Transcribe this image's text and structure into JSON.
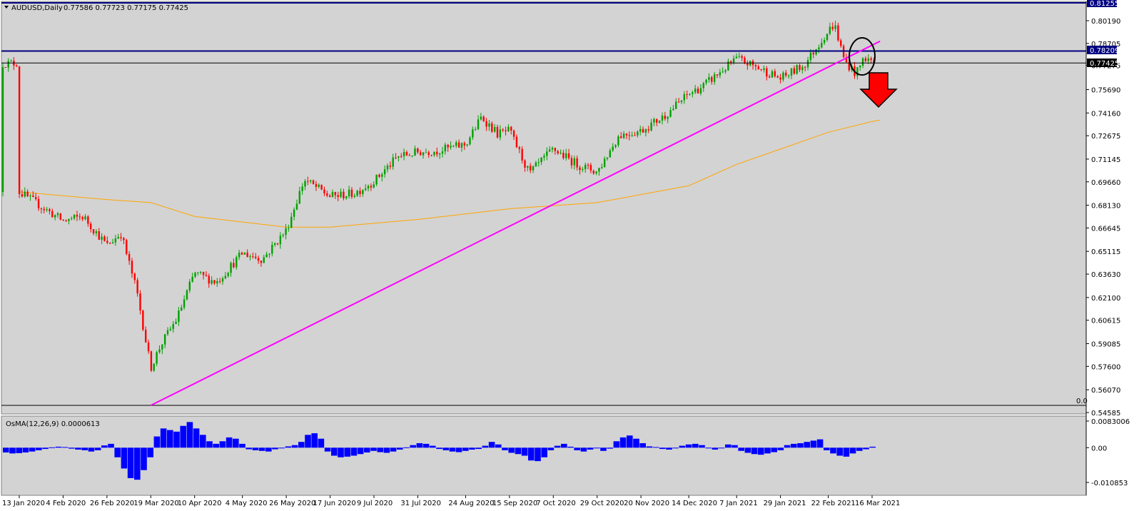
{
  "header": {
    "symbol_label": "AUDUSD,Daily",
    "ohlc_text": "0.77586 0.77723 0.77175 0.77425"
  },
  "colors": {
    "background": "#d3d3d3",
    "bull": "#00a000",
    "bear": "#ff0000",
    "trendline": "#ff00ff",
    "moving_average": "#ffa500",
    "resistance_line": "#000080",
    "osma_bars": "#0000ff",
    "arrow": "#ff0000"
  },
  "chart_data": [
    {
      "type": "candlestick",
      "symbol": "AUDUSD",
      "timeframe": "Daily",
      "price_axis_labels": [
        "0.80190",
        "0.78705",
        "0.77275",
        "0.75690",
        "0.74160",
        "0.72675",
        "0.71145",
        "0.69660",
        "0.68130",
        "0.66645",
        "0.65115",
        "0.63630",
        "0.62100",
        "0.60615",
        "0.59085",
        "0.57600",
        "0.56070",
        "0.54585"
      ],
      "ylim": [
        0.54585,
        0.81255
      ],
      "date_axis_labels": [
        "13 Jan 2020",
        "4 Feb 2020",
        "26 Feb 2020",
        "19 Mar 2020",
        "10 Apr 2020",
        "4 May 2020",
        "26 May 2020",
        "17 Jun 2020",
        "9 Jul 2020",
        "31 Jul 2020",
        "24 Aug 2020",
        "15 Sep 2020",
        "7 Oct 2020",
        "29 Oct 2020",
        "20 Nov 2020",
        "14 Dec 2020",
        "7 Jan 2021",
        "29 Jan 2021",
        "22 Feb 2021",
        "16 Mar 2021"
      ],
      "price_tags": {
        "top": "0.81255",
        "resistance": "0.78209",
        "current": "0.77425"
      },
      "resistance_level": 0.7821,
      "current_price": 0.77425,
      "fibo_label": "0.0",
      "price_path": [
        [
          "13 Jan 2020",
          0.69
        ],
        [
          "4 Feb 2020",
          0.671
        ],
        [
          "14 Feb 2020",
          0.674
        ],
        [
          "26 Feb 2020",
          0.655
        ],
        [
          "4 Mar 2020",
          0.663
        ],
        [
          "12 Mar 2020",
          0.625
        ],
        [
          "19 Mar 2020",
          0.575
        ],
        [
          "24 Mar 2020",
          0.59
        ],
        [
          "1 Apr 2020",
          0.607
        ],
        [
          "10 Apr 2020",
          0.637
        ],
        [
          "21 Apr 2020",
          0.631
        ],
        [
          "4 May 2020",
          0.65
        ],
        [
          "14 May 2020",
          0.646
        ],
        [
          "26 May 2020",
          0.665
        ],
        [
          "4 Jun 2020",
          0.698
        ],
        [
          "10 Jun 2020",
          0.693
        ],
        [
          "17 Jun 2020",
          0.687
        ],
        [
          "29 Jun 2020",
          0.689
        ],
        [
          "9 Jul 2020",
          0.697
        ],
        [
          "21 Jul 2020",
          0.713
        ],
        [
          "31 Jul 2020",
          0.716
        ],
        [
          "10 Aug 2020",
          0.717
        ],
        [
          "24 Aug 2020",
          0.721
        ],
        [
          "1 Sep 2020",
          0.739
        ],
        [
          "9 Sep 2020",
          0.728
        ],
        [
          "15 Sep 2020",
          0.73
        ],
        [
          "25 Sep 2020",
          0.702
        ],
        [
          "7 Oct 2020",
          0.718
        ],
        [
          "19 Oct 2020",
          0.708
        ],
        [
          "29 Oct 2020",
          0.703
        ],
        [
          "9 Nov 2020",
          0.727
        ],
        [
          "20 Nov 2020",
          0.73
        ],
        [
          "1 Dec 2020",
          0.739
        ],
        [
          "14 Dec 2020",
          0.754
        ],
        [
          "21 Dec 2020",
          0.759
        ],
        [
          "7 Jan 2021",
          0.777
        ],
        [
          "18 Jan 2021",
          0.771
        ],
        [
          "29 Jan 2021",
          0.764
        ],
        [
          "10 Feb 2021",
          0.773
        ],
        [
          "19 Feb 2021",
          0.79
        ],
        [
          "25 Feb 2021",
          0.8
        ],
        [
          "2 Mar 2021",
          0.776
        ],
        [
          "8 Mar 2021",
          0.767
        ],
        [
          "12 Mar 2021",
          0.778
        ],
        [
          "18 Mar 2021",
          0.774
        ]
      ],
      "moving_average": [
        [
          "13 Jan 2020",
          0.69
        ],
        [
          "26 Feb 2020",
          0.685
        ],
        [
          "19 Mar 2020",
          0.683
        ],
        [
          "10 Apr 2020",
          0.674
        ],
        [
          "26 May 2020",
          0.667
        ],
        [
          "17 Jun 2020",
          0.667
        ],
        [
          "31 Jul 2020",
          0.672
        ],
        [
          "15 Sep 2020",
          0.679
        ],
        [
          "29 Oct 2020",
          0.683
        ],
        [
          "14 Dec 2020",
          0.694
        ],
        [
          "7 Jan 2021",
          0.708
        ],
        [
          "29 Jan 2021",
          0.718
        ],
        [
          "22 Feb 2021",
          0.729
        ],
        [
          "16 Mar 2021",
          0.736
        ],
        [
          "20 Mar 2021",
          0.737
        ]
      ],
      "trendline": {
        "from": [
          "19 Mar 2020",
          0.5505
        ],
        "to": [
          "20 Mar 2021",
          0.7885
        ]
      },
      "annotation": "circle at trendline break with red down arrow"
    },
    {
      "type": "histogram",
      "indicator_label": "OsMA(12,26,9) 0.0000613",
      "axis_labels": [
        "0.0083006",
        "0.00",
        "-0.010853"
      ],
      "ylim": [
        -0.010853,
        0.0083006
      ],
      "values": [
        -0.0015,
        -0.0018,
        -0.0017,
        -0.0015,
        -0.0012,
        -0.0008,
        -0.0004,
        0.0001,
        0.0003,
        0.0002,
        -0.0003,
        -0.0006,
        -0.0008,
        -0.0012,
        -0.0008,
        0.0007,
        0.0012,
        -0.003,
        -0.0065,
        -0.0095,
        -0.01,
        -0.007,
        -0.003,
        0.0035,
        0.006,
        0.0055,
        0.005,
        0.0068,
        0.008,
        0.006,
        0.004,
        0.002,
        0.0012,
        0.002,
        0.0032,
        0.0028,
        0.0012,
        -0.0005,
        -0.0008,
        -0.001,
        -0.0012,
        -0.0005,
        -0.0001,
        0.0004,
        0.0008,
        0.0018,
        0.004,
        0.0045,
        0.0028,
        -0.0012,
        -0.0025,
        -0.003,
        -0.0028,
        -0.0025,
        -0.002,
        -0.0015,
        -0.001,
        -0.0014,
        -0.0016,
        -0.0012,
        -0.0006,
        0.0001,
        0.0008,
        0.0014,
        0.0012,
        0.0006,
        -0.0004,
        -0.0008,
        -0.0012,
        -0.0014,
        -0.001,
        -0.0006,
        -0.0004,
        0.0006,
        0.0018,
        0.001,
        -0.0008,
        -0.0016,
        -0.002,
        -0.0025,
        -0.004,
        -0.0042,
        -0.003,
        -0.0008,
        0.0006,
        0.0012,
        0.0003,
        -0.0008,
        -0.0012,
        -0.0006,
        -0.0002,
        -0.001,
        -0.0003,
        0.002,
        0.0032,
        0.0038,
        0.0028,
        0.0014,
        0.0004,
        0.0002,
        -0.0004,
        -0.0006,
        -0.0002,
        0.0006,
        0.001,
        0.0012,
        0.0008,
        -0.0002,
        -0.0006,
        -0.0002,
        0.001,
        0.0008,
        -0.001,
        -0.0016,
        -0.002,
        -0.0022,
        -0.0018,
        -0.0014,
        -0.0008,
        0.0008,
        0.0012,
        0.0014,
        0.0018,
        0.0022,
        0.0026,
        -0.0008,
        -0.0018,
        -0.0025,
        -0.0028,
        -0.0018,
        -0.001,
        -0.0005,
        0.0003
      ]
    }
  ]
}
